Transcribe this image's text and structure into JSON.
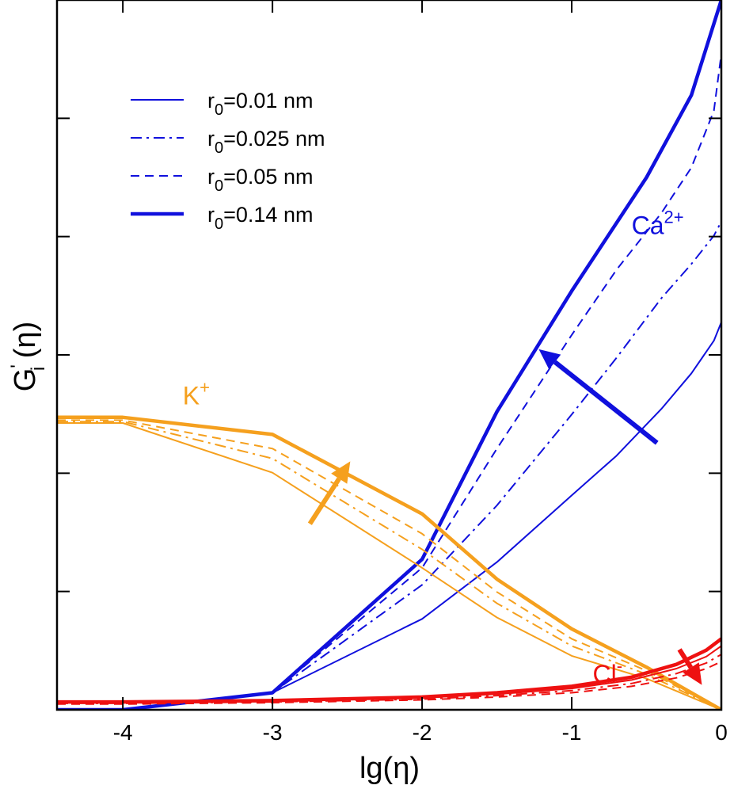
{
  "chart_data": {
    "type": "line",
    "xlabel_base": "lg(",
    "xlabel_symbol": "η",
    "xlabel_close": ")",
    "ylabel_main": "G",
    "ylabel_prime": "'",
    "ylabel_sub": "i",
    "ylabel_arg": " (η)",
    "xlim": [
      -4.44,
      0
    ],
    "ylim": [
      0,
      1.0
    ],
    "x_ticks": [
      -4,
      -3,
      -2,
      -1,
      0
    ],
    "x_tick_labels": [
      "-4",
      "-3",
      "-2",
      "-1",
      "0"
    ],
    "y_ticks": [
      0.1667,
      0.3333,
      0.5,
      0.6667,
      0.8333
    ],
    "y_tick_labels": [],
    "colors": {
      "Ca": "#1010dd",
      "K": "#f5a01e",
      "Cl": "#ee1111",
      "axis": "#000000"
    },
    "legend": [
      {
        "prefix": "r",
        "sub": "0",
        "suffix": "=0.01 nm",
        "style": "solid"
      },
      {
        "prefix": "r",
        "sub": "0",
        "suffix": "=0.025 nm",
        "style": "dashdot"
      },
      {
        "prefix": "r",
        "sub": "0",
        "suffix": "=0.05 nm",
        "style": "dashed"
      },
      {
        "prefix": "r",
        "sub": "0",
        "suffix": "=0.14 nm",
        "style": "thick"
      }
    ],
    "ion_labels": {
      "Ca": {
        "base": "Ca",
        "sup": "2+"
      },
      "K": {
        "base": "K",
        "sup": "+"
      },
      "Cl": {
        "base": "Cl",
        "sup": "-"
      }
    },
    "arrows": [
      {
        "ion": "Ca",
        "from": [
          -0.43,
          0.376
        ],
        "to": [
          -1.22,
          0.508
        ]
      },
      {
        "ion": "K",
        "from": [
          -2.75,
          0.262
        ],
        "to": [
          -2.48,
          0.35
        ]
      },
      {
        "ion": "Cl",
        "from": [
          -0.28,
          0.085
        ],
        "to": [
          -0.13,
          0.035
        ]
      }
    ],
    "series": [
      {
        "ion": "Ca",
        "name": "r0=0.01 nm",
        "style": "solid",
        "x": [
          -4.44,
          -4,
          -3,
          -2,
          -1.5,
          -1,
          -0.7,
          -0.4,
          -0.2,
          -0.05,
          0
        ],
        "y": [
          0.0,
          0.0,
          0.024,
          0.128,
          0.208,
          0.302,
          0.358,
          0.424,
          0.474,
          0.52,
          0.546
        ]
      },
      {
        "ion": "Ca",
        "name": "r0=0.025 nm",
        "style": "dashdot",
        "x": [
          -4.44,
          -4,
          -3,
          -2,
          -1.5,
          -1,
          -0.7,
          -0.4,
          -0.2,
          -0.05,
          0
        ],
        "y": [
          0.0,
          0.0,
          0.024,
          0.176,
          0.288,
          0.416,
          0.496,
          0.58,
          0.628,
          0.668,
          0.688
        ]
      },
      {
        "ion": "Ca",
        "name": "r0=0.05 nm",
        "style": "dashed",
        "x": [
          -4.44,
          -4,
          -3,
          -2,
          -1.5,
          -1,
          -0.7,
          -0.4,
          -0.2,
          -0.05,
          0
        ],
        "y": [
          0.0,
          0.0,
          0.024,
          0.2,
          0.368,
          0.528,
          0.62,
          0.7,
          0.764,
          0.844,
          0.924
        ]
      },
      {
        "ion": "Ca",
        "name": "r0=0.14 nm",
        "style": "thick",
        "x": [
          -4.44,
          -4,
          -3,
          -2,
          -1.5,
          -1,
          -0.5,
          -0.2,
          0
        ],
        "y": [
          0.0,
          0.0,
          0.024,
          0.212,
          0.42,
          0.59,
          0.75,
          0.866,
          1.0
        ]
      },
      {
        "ion": "K",
        "name": "r0=0.01 nm",
        "style": "solid",
        "x": [
          -4.44,
          -4,
          -3,
          -2,
          -1.5,
          -1,
          -0.5,
          0
        ],
        "y": [
          0.404,
          0.404,
          0.334,
          0.2,
          0.13,
          0.076,
          0.044,
          0.0
        ]
      },
      {
        "ion": "K",
        "name": "r0=0.025 nm",
        "style": "dashdot",
        "x": [
          -4.44,
          -4,
          -3,
          -2,
          -1.5,
          -1,
          -0.5,
          0
        ],
        "y": [
          0.406,
          0.406,
          0.354,
          0.226,
          0.15,
          0.09,
          0.05,
          0.0
        ]
      },
      {
        "ion": "K",
        "name": "r0=0.05 nm",
        "style": "dashed",
        "x": [
          -4.44,
          -4,
          -3,
          -2,
          -1.5,
          -1,
          -0.5,
          0
        ],
        "y": [
          0.408,
          0.408,
          0.368,
          0.248,
          0.166,
          0.1,
          0.055,
          0.0
        ]
      },
      {
        "ion": "K",
        "name": "r0=0.14 nm",
        "style": "thick",
        "x": [
          -4.44,
          -4,
          -3,
          -2,
          -1.5,
          -1,
          -0.5,
          0
        ],
        "y": [
          0.412,
          0.412,
          0.388,
          0.276,
          0.184,
          0.114,
          0.06,
          0.0
        ]
      },
      {
        "ion": "Cl",
        "name": "r0=0.01 nm",
        "style": "solid",
        "x": [
          -4.44,
          -4,
          -3,
          -2,
          -1.5,
          -1,
          -0.6,
          -0.3,
          -0.1,
          0
        ],
        "y": [
          0.01,
          0.01,
          0.012,
          0.017,
          0.022,
          0.03,
          0.042,
          0.058,
          0.075,
          0.09
        ]
      },
      {
        "ion": "Cl",
        "name": "r0=0.025 nm",
        "style": "dashdot",
        "x": [
          -4.44,
          -4,
          -3,
          -2,
          -1.5,
          -1,
          -0.6,
          -0.3,
          -0.1,
          0
        ],
        "y": [
          0.009,
          0.009,
          0.011,
          0.015,
          0.02,
          0.027,
          0.037,
          0.051,
          0.066,
          0.078
        ]
      },
      {
        "ion": "Cl",
        "name": "r0=0.05 nm",
        "style": "dashed",
        "x": [
          -4.44,
          -4,
          -3,
          -2,
          -1.5,
          -1,
          -0.6,
          -0.3,
          -0.1,
          0
        ],
        "y": [
          0.008,
          0.008,
          0.01,
          0.014,
          0.018,
          0.024,
          0.033,
          0.045,
          0.058,
          0.068
        ]
      },
      {
        "ion": "Cl",
        "name": "r0=0.14 nm",
        "style": "thick",
        "x": [
          -4.44,
          -4,
          -3,
          -2,
          -1.5,
          -1,
          -0.6,
          -0.3,
          -0.1,
          0
        ],
        "y": [
          0.011,
          0.011,
          0.013,
          0.018,
          0.024,
          0.033,
          0.046,
          0.064,
          0.084,
          0.1
        ]
      }
    ]
  }
}
